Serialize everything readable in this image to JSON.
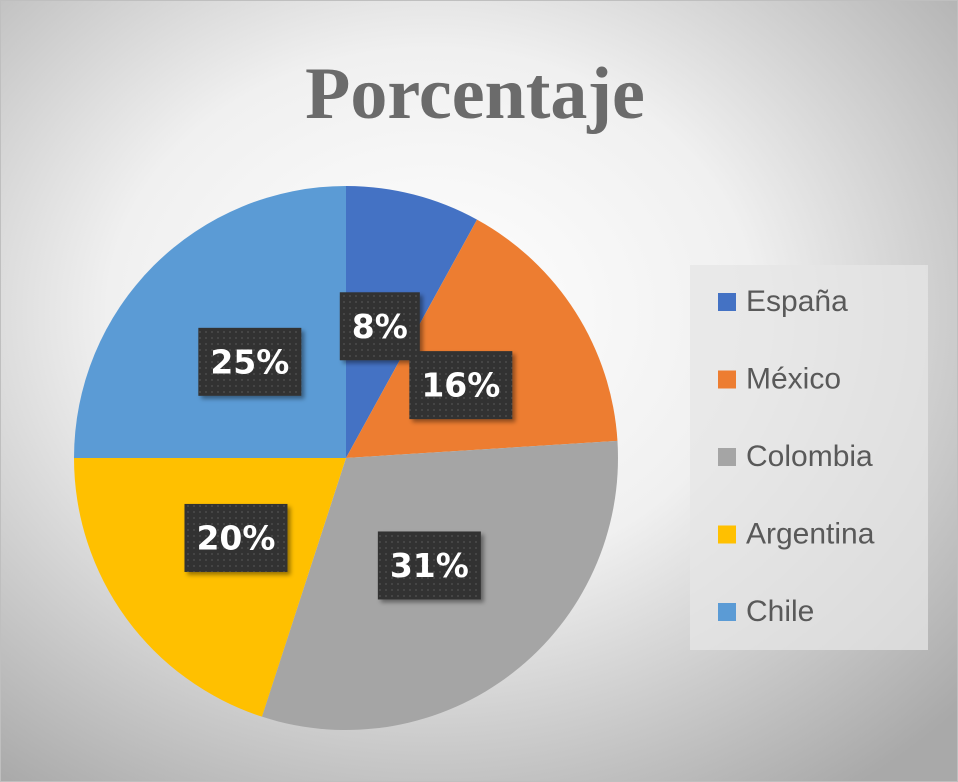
{
  "chart_data": {
    "type": "pie",
    "title": "Porcentaje",
    "categories": [
      "España",
      "México",
      "Colombia",
      "Argentina",
      "Chile"
    ],
    "values": [
      8,
      16,
      31,
      20,
      25
    ],
    "value_labels": [
      "8%",
      "16%",
      "31%",
      "20%",
      "25%"
    ],
    "colors": [
      "#4472c4",
      "#ed7d31",
      "#a5a5a5",
      "#ffc000",
      "#5b9bd5"
    ],
    "legend": "right"
  }
}
